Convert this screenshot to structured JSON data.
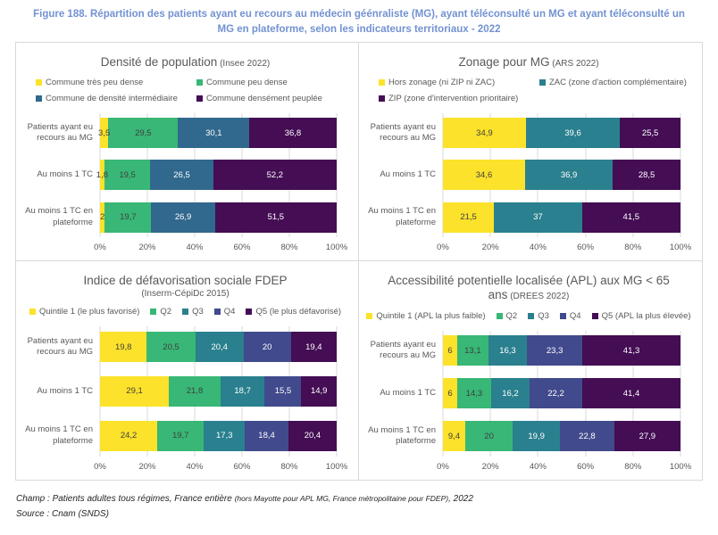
{
  "figure_title": "Figure 188. Répartition des patients ayant eu recours au médecin géénraliste (MG), ayant téléconsulté un MG et ayant téléconsulté un MG en plateforme, selon les indicateurs territoriaux - 2022",
  "axis_ticks": [
    "0%",
    "20%",
    "40%",
    "60%",
    "80%",
    "100%"
  ],
  "colors": {
    "title_blue": "#7292d2",
    "panel_border": "#d9d9d9",
    "text_gray": "#595959",
    "gridline": "#d9d9d9",
    "yellow": "#fce22a",
    "green": "#38b776",
    "steel_blue": "#31688e",
    "teal": "#2a808e",
    "indigo": "#414a8c",
    "purple": "#440d54"
  },
  "chart_data": [
    {
      "id": "densite",
      "type": "bar",
      "orientation": "horizontal",
      "stacked": true,
      "xlim": [
        0,
        100
      ],
      "grid": true,
      "legend_layout": "grid",
      "title": "Densité de population",
      "title_suffix": "(Insee 2022)",
      "subtitle": "",
      "categories": [
        "Patients ayant eu recours au MG",
        "Au moins 1 TC",
        "Au moins 1 TC en plateforme"
      ],
      "series": [
        {
          "name": "Commune très peu dense",
          "color": "#fce22a",
          "label_color": "#404040",
          "values": [
            3.5,
            1.8,
            2
          ]
        },
        {
          "name": "Commune peu dense",
          "color": "#38b776",
          "label_color": "#404040",
          "values": [
            29.5,
            19.5,
            19.7
          ]
        },
        {
          "name": "Commune de densité intermédiaire",
          "color": "#31688e",
          "label_color": "#ffffff",
          "values": [
            30.1,
            26.5,
            26.9
          ]
        },
        {
          "name": "Commune densément peuplée",
          "color": "#440d54",
          "label_color": "#ffffff",
          "values": [
            36.8,
            52.2,
            51.5
          ]
        }
      ]
    },
    {
      "id": "zonage",
      "type": "bar",
      "orientation": "horizontal",
      "stacked": true,
      "xlim": [
        0,
        100
      ],
      "grid": true,
      "legend_layout": "grid",
      "title": "Zonage pour MG",
      "title_suffix": "(ARS 2022)",
      "subtitle": "",
      "categories": [
        "Patients ayant eu recours au MG",
        "Au moins 1 TC",
        "Au moins 1 TC en plateforme"
      ],
      "series": [
        {
          "name": "Hors zonage (ni ZIP ni ZAC)",
          "color": "#fce22a",
          "label_color": "#404040",
          "values": [
            34.9,
            34.6,
            21.5
          ]
        },
        {
          "name": "ZAC (zone d'action complémentaire)",
          "color": "#2a808e",
          "label_color": "#ffffff",
          "values": [
            39.6,
            36.9,
            37
          ]
        },
        {
          "name": "ZIP (zone d'intervention prioritaire)",
          "color": "#440d54",
          "label_color": "#ffffff",
          "values": [
            25.5,
            28.5,
            41.5
          ]
        }
      ]
    },
    {
      "id": "fdep",
      "type": "bar",
      "orientation": "horizontal",
      "stacked": true,
      "xlim": [
        0,
        100
      ],
      "grid": true,
      "legend_layout": "row",
      "title": "Indice de défavorisation sociale FDEP",
      "title_suffix": "",
      "subtitle": "(Inserm-CépiDc 2015)",
      "categories": [
        "Patients ayant eu recours au MG",
        "Au moins 1 TC",
        "Au moins 1 TC en plateforme"
      ],
      "series": [
        {
          "name": "Quintile 1 (le plus favorisé)",
          "color": "#fce22a",
          "label_color": "#404040",
          "values": [
            19.8,
            29.1,
            24.2
          ]
        },
        {
          "name": "Q2",
          "color": "#38b776",
          "label_color": "#404040",
          "values": [
            20.5,
            21.8,
            19.7
          ]
        },
        {
          "name": "Q3",
          "color": "#2a808e",
          "label_color": "#ffffff",
          "values": [
            20.4,
            18.7,
            17.3
          ]
        },
        {
          "name": "Q4",
          "color": "#414a8c",
          "label_color": "#ffffff",
          "values": [
            20,
            15.5,
            18.4
          ]
        },
        {
          "name": "Q5 (le plus défavorisé)",
          "color": "#440d54",
          "label_color": "#ffffff",
          "values": [
            19.4,
            14.9,
            20.4
          ]
        }
      ]
    },
    {
      "id": "apl",
      "type": "bar",
      "orientation": "horizontal",
      "stacked": true,
      "xlim": [
        0,
        100
      ],
      "grid": true,
      "legend_layout": "row",
      "title": "Accessibilité potentielle localisée (APL) aux MG < 65 ans",
      "title_suffix": "(DREES 2022)",
      "subtitle": "",
      "categories": [
        "Patients ayant eu recours au MG",
        "Au moins 1 TC",
        "Au moins 1 TC en plateforme"
      ],
      "series": [
        {
          "name": "Quintile 1 (APL la plus faible)",
          "color": "#fce22a",
          "label_color": "#404040",
          "values": [
            6,
            6,
            9.4
          ]
        },
        {
          "name": "Q2",
          "color": "#38b776",
          "label_color": "#404040",
          "values": [
            13.1,
            14.3,
            20
          ]
        },
        {
          "name": "Q3",
          "color": "#2a808e",
          "label_color": "#ffffff",
          "values": [
            16.3,
            16.2,
            19.9
          ]
        },
        {
          "name": "Q4",
          "color": "#414a8c",
          "label_color": "#ffffff",
          "values": [
            23.3,
            22.2,
            22.8
          ]
        },
        {
          "name": "Q5 (APL la plus élevée)",
          "color": "#440d54",
          "label_color": "#ffffff",
          "values": [
            41.3,
            41.4,
            27.9
          ]
        }
      ]
    }
  ],
  "footer": {
    "champ_prefix": "Champ : Patients adultes tous régimes, France entière ",
    "champ_small": "(hors Mayotte pour APL MG, France métropolitaine pour FDEP)",
    "champ_suffix": ", 2022",
    "source": "Source : Cnam (SNDS)"
  }
}
